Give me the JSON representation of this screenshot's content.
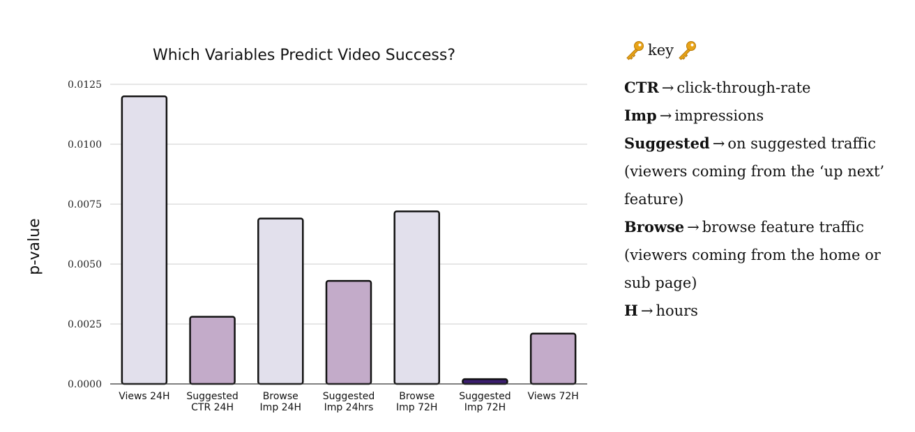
{
  "chart_data": {
    "type": "bar",
    "title": "Which Variables Predict Video Success?",
    "ylabel": "p-value",
    "xlabel": "",
    "ylim": [
      0,
      0.0125
    ],
    "yticks": [
      "0.0000",
      "0.0025",
      "0.0050",
      "0.0075",
      "0.0100",
      "0.0125"
    ],
    "grid": true,
    "categories": [
      [
        "Views 24H"
      ],
      [
        "Suggested",
        "CTR 24H"
      ],
      [
        "Browse",
        "Imp 24H"
      ],
      [
        "Suggested",
        "Imp 24hrs"
      ],
      [
        "Browse",
        "Imp 72H"
      ],
      [
        "Suggested",
        "Imp 72H"
      ],
      [
        "Views 72H"
      ]
    ],
    "values": [
      0.012,
      0.0028,
      0.0069,
      0.0043,
      0.0072,
      0.0002,
      0.0021
    ],
    "colors": [
      "#e2e0ec",
      "#c3abc9",
      "#e2e0ec",
      "#c3abc9",
      "#e2e0ec",
      "#3b1e6e",
      "#c3abc9"
    ]
  },
  "key": {
    "title": "key",
    "icon": "key-icon",
    "entries": [
      {
        "term": "CTR",
        "arrow": "→",
        "desc": "click-through-rate"
      },
      {
        "term": "Imp",
        "arrow": "→",
        "desc": "impressions"
      },
      {
        "term": "Suggested",
        "arrow": "→",
        "desc": "on suggested traffic (viewers coming from the ‘up next’ feature)"
      },
      {
        "term": "Browse",
        "arrow": "→",
        "desc": "browse feature traffic (viewers coming from the home or sub page)"
      },
      {
        "term": "H",
        "arrow": "→",
        "desc": "hours"
      }
    ]
  }
}
